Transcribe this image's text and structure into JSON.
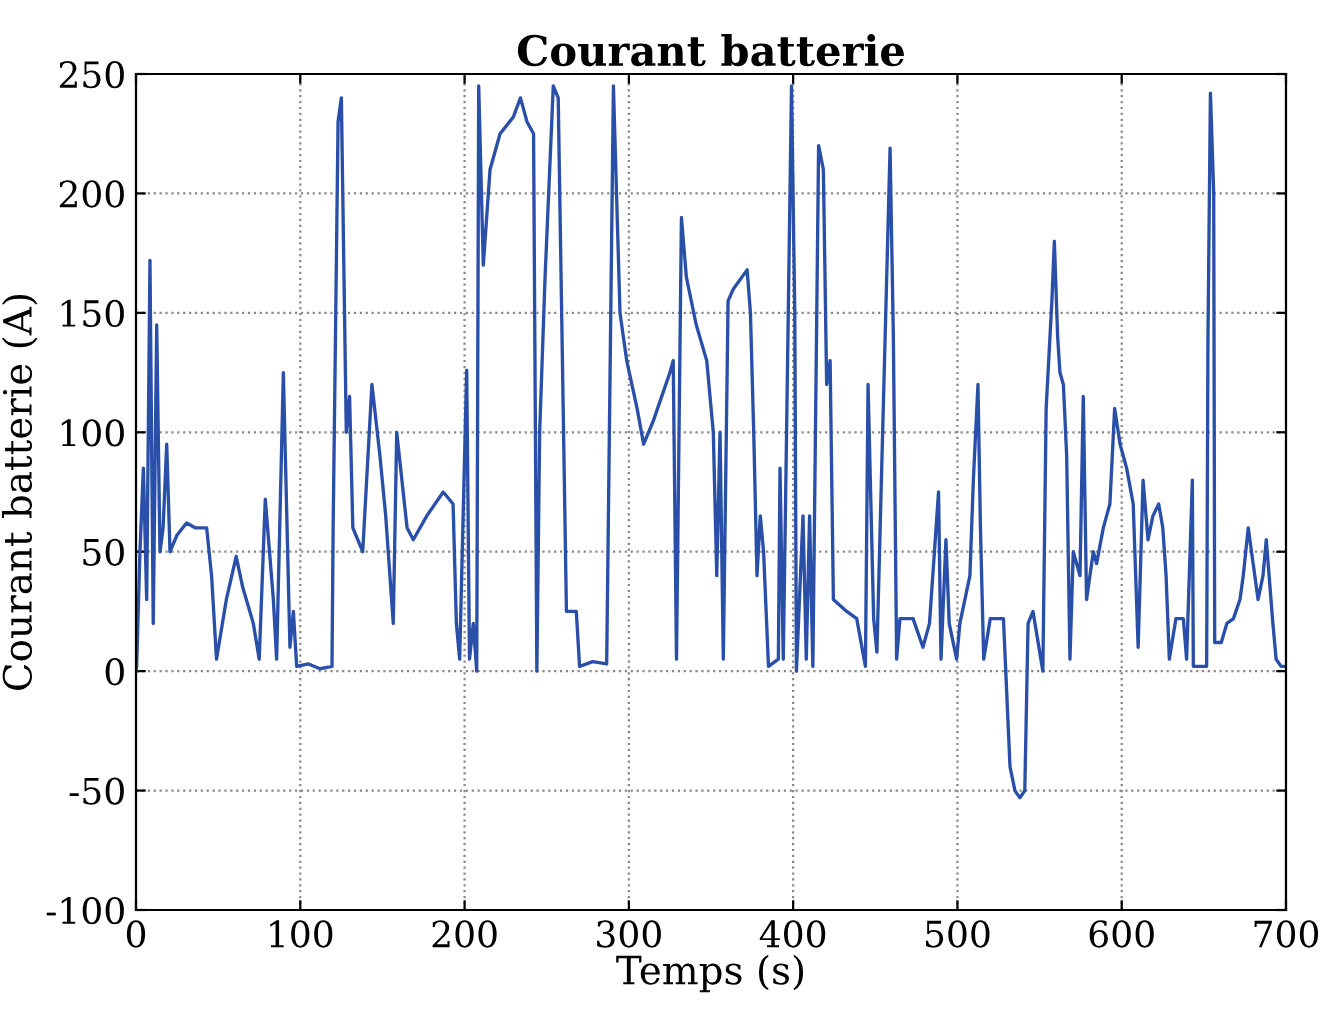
{
  "chart_data": {
    "type": "line",
    "title": "Courant batterie",
    "xlabel": "Temps (s)",
    "ylabel": "Courant batterie (A)",
    "xlim": [
      0,
      700
    ],
    "ylim": [
      -100,
      250
    ],
    "xticks": [
      0,
      100,
      200,
      300,
      400,
      500,
      600,
      700
    ],
    "yticks": [
      -100,
      -50,
      0,
      50,
      100,
      150,
      200,
      250
    ],
    "grid": true,
    "line_style": "solid",
    "marker": "none",
    "series": [
      {
        "color": "#2a4fa8",
        "x": [
          0,
          0.4,
          2.4,
          4.5,
          6.5,
          8.5,
          10.5,
          12.6,
          14.6,
          16.5,
          18.7,
          20.7,
          25,
          30.8,
          36,
          43,
          46,
          49,
          55,
          61,
          65,
          71.4,
          75,
          78.7,
          83.6,
          85.6,
          89.7,
          93.7,
          95.8,
          97.8,
          105,
          112,
          119.3,
          120,
          123,
          125,
          128,
          130,
          132,
          138,
          143.6,
          148.5,
          152,
          156.6,
          158.7,
          165,
          168.8,
          177,
          187,
          193,
          195,
          197,
          201.3,
          203,
          205.3,
          207.4,
          208.6,
          211.4,
          215.5,
          221.6,
          229.7,
          234,
          238,
          242,
          244,
          245.7,
          249,
          254,
          257,
          262,
          268,
          270,
          278,
          286.5,
          290.6,
          294.6,
          298.7,
          305,
          309,
          315,
          325,
          327,
          329,
          332,
          335,
          341,
          347.4,
          351.4,
          353.5,
          355.5,
          357.5,
          360.4,
          363.6,
          372,
          374,
          376,
          378,
          380,
          382,
          385,
          391,
          392,
          394,
          396,
          399,
          401,
          402,
          406,
          408,
          410,
          412,
          415.5,
          418.4,
          420.4,
          422.5,
          424.5,
          432.6,
          438.7,
          444,
          445.6,
          449,
          451,
          459,
          461,
          463,
          465,
          473,
          479,
          483,
          488.5,
          490,
          493,
          495,
          499.5,
          501.5,
          507.6,
          509.7,
          512.5,
          514,
          516,
          520,
          528,
          532,
          535,
          538,
          541,
          543,
          546,
          552,
          554,
          557.5,
          559,
          561,
          562.4,
          564.5,
          566.5,
          568.5,
          570.5,
          574.6,
          576.6,
          578.6,
          582.7,
          584.7,
          588.8,
          592.8,
          595.7,
          599,
          603,
          607,
          610,
          613,
          616,
          619,
          622.5,
          625,
          627,
          629,
          633,
          637.5,
          639.5,
          643,
          643.6,
          651.7,
          652.5,
          654,
          656,
          656.6,
          660.6,
          664,
          668,
          672,
          674,
          677,
          679,
          681,
          683,
          686,
          688,
          692,
          694,
          697,
          700
        ],
        "values": [
          0,
          2,
          50,
          85,
          30,
          172,
          20,
          145,
          50,
          60,
          95,
          50,
          57,
          62,
          60,
          60,
          40,
          5,
          30,
          48,
          35,
          20,
          5,
          72,
          30,
          5,
          125,
          10,
          25,
          2,
          3,
          1,
          2,
          60,
          230,
          240,
          100,
          115,
          60,
          50,
          120,
          90,
          65,
          20,
          100,
          60,
          55,
          65,
          75,
          70,
          20,
          5,
          126,
          5,
          20,
          0,
          245,
          170,
          210,
          225,
          232,
          240,
          230,
          225,
          0,
          100,
          165,
          245,
          240,
          25,
          25,
          2,
          4,
          3,
          245,
          150,
          130,
          110,
          95,
          105,
          125,
          130,
          5,
          190,
          165,
          145,
          130,
          100,
          40,
          100,
          5,
          155,
          160,
          168,
          150,
          100,
          40,
          65,
          50,
          2,
          5,
          85,
          5,
          100,
          245,
          150,
          0,
          65,
          5,
          65,
          2,
          220,
          210,
          120,
          130,
          30,
          25,
          22,
          2,
          120,
          22,
          8,
          219,
          140,
          5,
          22,
          22,
          10,
          20,
          75,
          5,
          55,
          20,
          5,
          20,
          40,
          80,
          120,
          60,
          5,
          22,
          22,
          -40,
          -50,
          -53,
          -50,
          20,
          25,
          0,
          110,
          155,
          180,
          140,
          125,
          120,
          90,
          5,
          50,
          40,
          115,
          30,
          50,
          45,
          60,
          70,
          110,
          95,
          85,
          70,
          10,
          80,
          55,
          65,
          70,
          60,
          40,
          5,
          22,
          22,
          5,
          80,
          2,
          2,
          140,
          242,
          200,
          12,
          12,
          20,
          22,
          30,
          40,
          60,
          50,
          40,
          30,
          40,
          55,
          20,
          5,
          2,
          2
        ]
      }
    ]
  }
}
